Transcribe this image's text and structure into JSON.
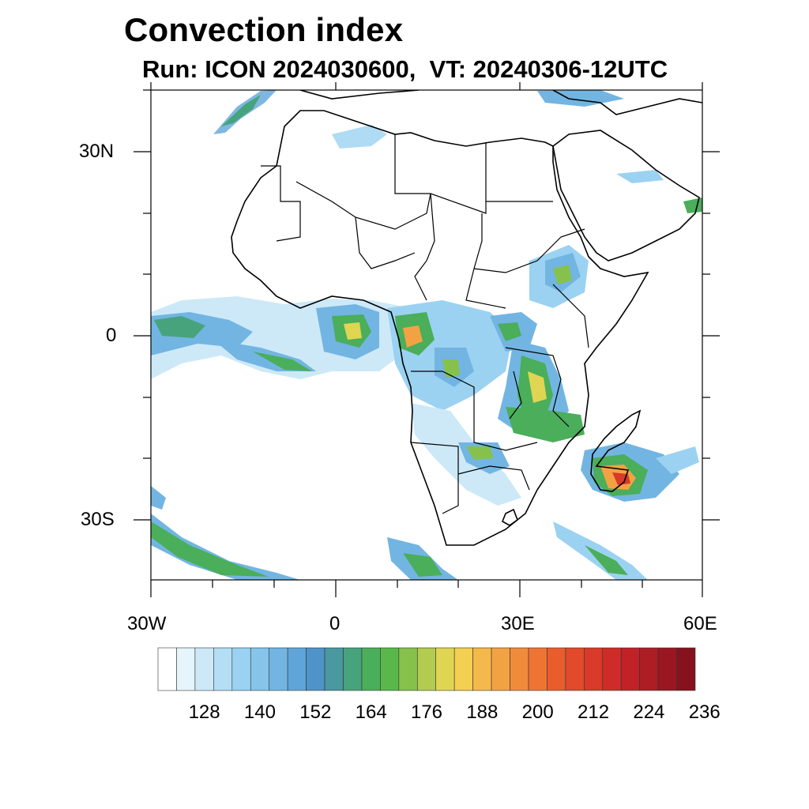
{
  "title": "Convection index",
  "subtitle": "Run: ICON 2024030600,  VT: 20240306-12UTC",
  "map": {
    "projection": "cylindrical equidistant",
    "lon_range": [
      -30,
      60
    ],
    "lat_range": [
      -40,
      40
    ],
    "lon_tick_labels": [
      "30W",
      "0",
      "30E",
      "60E"
    ],
    "lat_tick_labels": [
      "30N",
      "0",
      "30S"
    ],
    "field": "convection index"
  },
  "colorbar": {
    "levels": [
      "128",
      "140",
      "152",
      "164",
      "176",
      "188",
      "200",
      "212",
      "224",
      "236"
    ],
    "colors": [
      "#ffffff",
      "#e6f4fc",
      "#cde9f8",
      "#b4def5",
      "#9bd2f1",
      "#86c4ea",
      "#72b5e2",
      "#5fa5d9",
      "#4f94c8",
      "#4a98a0",
      "#47a37c",
      "#4aae5a",
      "#5ab84a",
      "#86c14c",
      "#b3cb4f",
      "#e0d553",
      "#f3cf52",
      "#f4b94b",
      "#f3a243",
      "#f18b3c",
      "#ee7434",
      "#e95d2d",
      "#e14a2a",
      "#d93a29",
      "#cf2c29",
      "#c02227",
      "#ae1c24",
      "#9a1721",
      "#85121d"
    ]
  }
}
